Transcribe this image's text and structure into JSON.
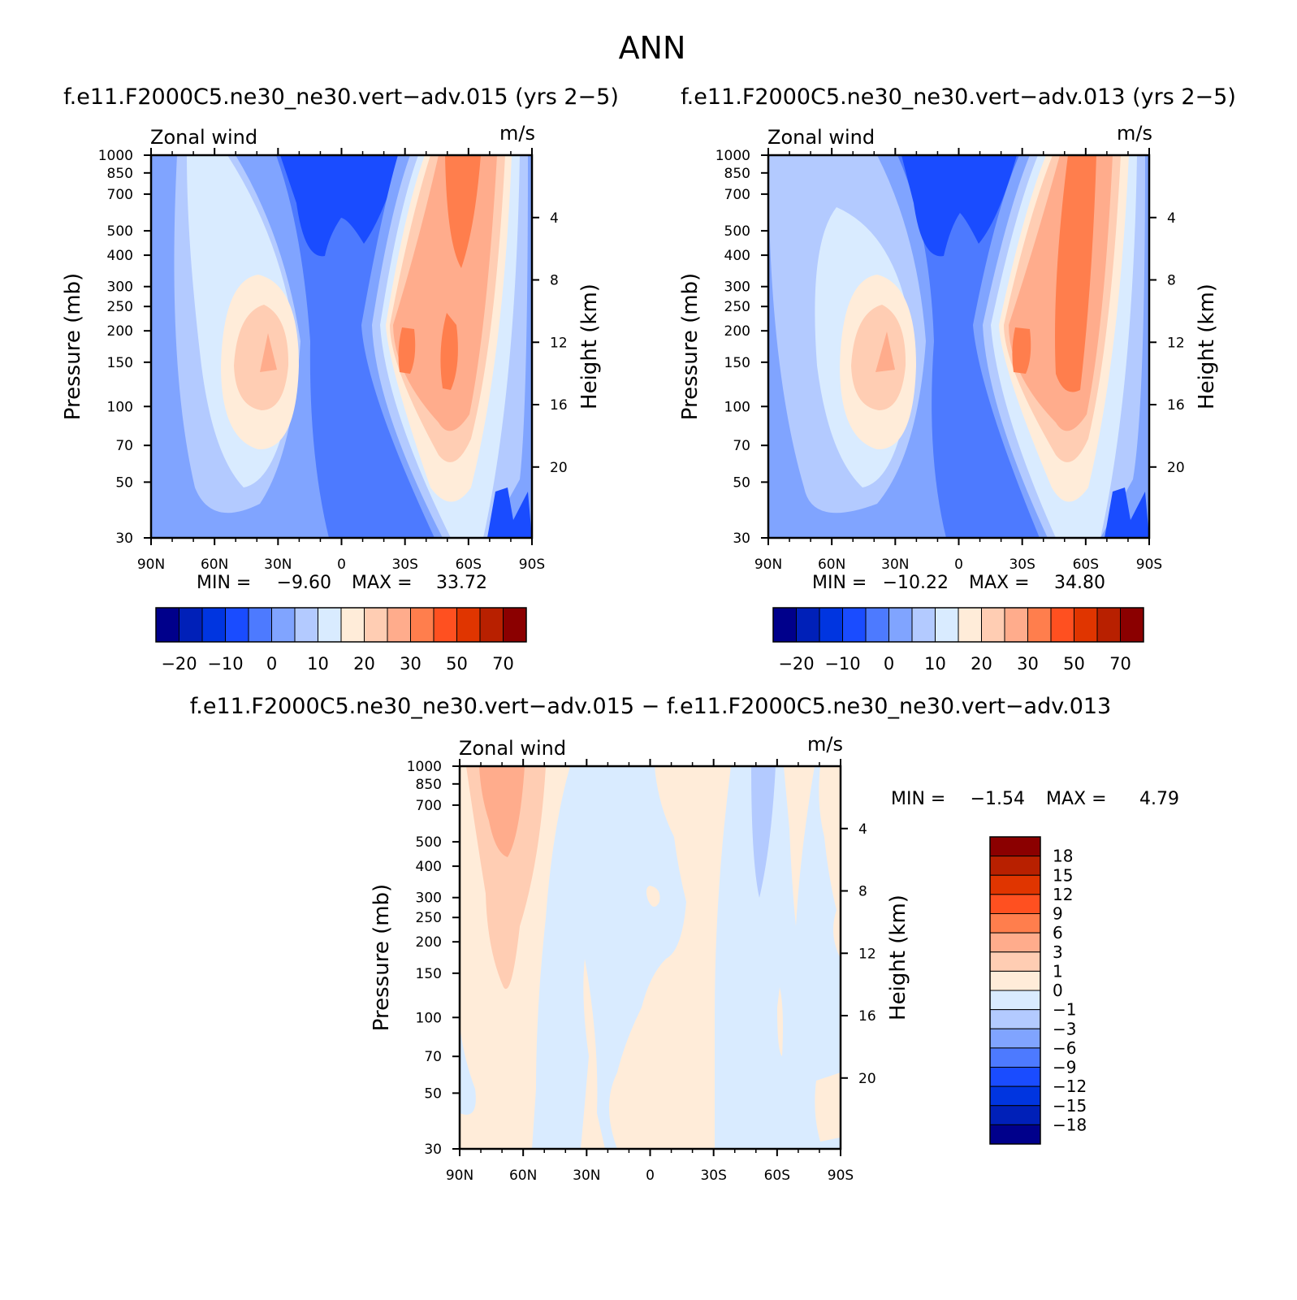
{
  "figure_title": "ANN",
  "colors": {
    "cmap": [
      "#00008b",
      "#0020b8",
      "#0035e0",
      "#1a4cff",
      "#4d7aff",
      "#80a4ff",
      "#b3caff",
      "#d9ebff",
      "#ffecd9",
      "#ffcdb3",
      "#ffac8c",
      "#ff7e4d",
      "#ff5020",
      "#e03500",
      "#b82000",
      "#8b0000"
    ],
    "axes": "#000000",
    "background": "#ffffff"
  },
  "chart_data": [
    {
      "type": "heatmap",
      "id": "top-left",
      "title": "f.e11.F2000C5.ne30_ne30.vert−adv.015 (yrs 2−5)",
      "variable": "Zonal wind",
      "units": "m/s",
      "ylabel": "Pressure (mb)",
      "y2label": "Height (km)",
      "x_ticks": [
        "90N",
        "60N",
        "30N",
        "0",
        "30S",
        "60S",
        "90S"
      ],
      "y_ticks": [
        "30",
        "50",
        "70",
        "100",
        "150",
        "200",
        "250",
        "300",
        "400",
        "500",
        "700",
        "850",
        "1000"
      ],
      "y2_ticks": [
        "20",
        "16",
        "12",
        "8",
        "4"
      ],
      "min_label": "MIN =",
      "min": "−9.60",
      "max_label": "MAX =",
      "max": "33.72",
      "colorbar_labels": [
        "−20",
        "−10",
        "0",
        "10",
        "20",
        "30",
        "50",
        "70"
      ]
    },
    {
      "type": "heatmap",
      "id": "top-right",
      "title": "f.e11.F2000C5.ne30_ne30.vert−adv.013 (yrs 2−5)",
      "variable": "Zonal wind",
      "units": "m/s",
      "ylabel": "Pressure (mb)",
      "y2label": "Height (km)",
      "x_ticks": [
        "90N",
        "60N",
        "30N",
        "0",
        "30S",
        "60S",
        "90S"
      ],
      "y_ticks": [
        "30",
        "50",
        "70",
        "100",
        "150",
        "200",
        "250",
        "300",
        "400",
        "500",
        "700",
        "850",
        "1000"
      ],
      "y2_ticks": [
        "20",
        "16",
        "12",
        "8",
        "4"
      ],
      "min_label": "MIN =",
      "min": "−10.22",
      "max_label": "MAX =",
      "max": "34.80",
      "colorbar_labels": [
        "−20",
        "−10",
        "0",
        "10",
        "20",
        "30",
        "50",
        "70"
      ]
    },
    {
      "type": "heatmap",
      "id": "difference",
      "title": "f.e11.F2000C5.ne30_ne30.vert−adv.015 − f.e11.F2000C5.ne30_ne30.vert−adv.013",
      "variable": "Zonal wind",
      "units": "m/s",
      "ylabel": "Pressure (mb)",
      "y2label": "Height (km)",
      "x_ticks": [
        "90N",
        "60N",
        "30N",
        "0",
        "30S",
        "60S",
        "90S"
      ],
      "y_ticks": [
        "30",
        "50",
        "70",
        "100",
        "150",
        "200",
        "250",
        "300",
        "400",
        "500",
        "700",
        "850",
        "1000"
      ],
      "y2_ticks": [
        "20",
        "16",
        "12",
        "8",
        "4"
      ],
      "min_label": "MIN =",
      "min": "−1.54",
      "max_label": "MAX =",
      "max": "4.79",
      "colorbar_labels": [
        "18",
        "15",
        "12",
        "9",
        "6",
        "3",
        "1",
        "0",
        "−1",
        "−3",
        "−6",
        "−9",
        "−12",
        "−15",
        "−18"
      ]
    }
  ]
}
